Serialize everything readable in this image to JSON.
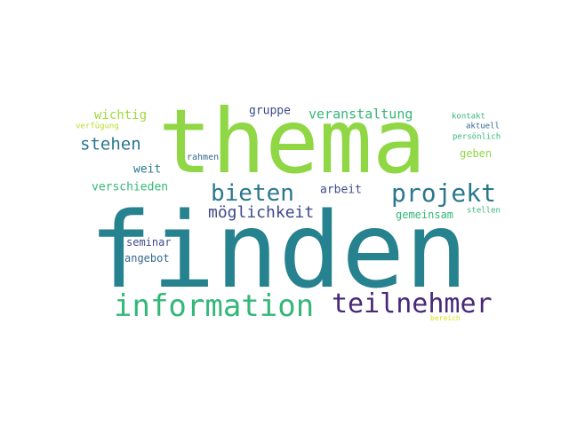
{
  "palette": {
    "yellow_green": "#b5de2b",
    "light_green": "#6ece58",
    "green": "#35b779",
    "teal": "#26828e",
    "teal_blue": "#2a788e",
    "blue": "#3e4a89",
    "navy": "#31688e",
    "purple": "#440154",
    "dark_purple": "#482878"
  },
  "words": [
    {
      "text": "finden",
      "color": "#26828e"
    },
    {
      "text": "thema",
      "color": "#8fd744"
    },
    {
      "text": "information",
      "color": "#35b779"
    },
    {
      "text": "teilnehmer",
      "color": "#482878"
    },
    {
      "text": "projekt",
      "color": "#2a788e"
    },
    {
      "text": "bieten",
      "color": "#2a788e"
    },
    {
      "text": "möglichkeit",
      "color": "#3e4a89"
    },
    {
      "text": "stehen",
      "color": "#2a788e"
    },
    {
      "text": "veranstaltung",
      "color": "#35b779"
    },
    {
      "text": "wichtig",
      "color": "#a0da39"
    },
    {
      "text": "gruppe",
      "color": "#3e4a89"
    },
    {
      "text": "weit",
      "color": "#2a788e"
    },
    {
      "text": "verschieden",
      "color": "#35b779"
    },
    {
      "text": "arbeit",
      "color": "#3e4a89"
    },
    {
      "text": "gemeinsam",
      "color": "#35b779"
    },
    {
      "text": "geben",
      "color": "#8fd744"
    },
    {
      "text": "seminar",
      "color": "#3e4a89"
    },
    {
      "text": "angebot",
      "color": "#31688e"
    },
    {
      "text": "rahmen",
      "color": "#31688e"
    },
    {
      "text": "kontakt",
      "color": "#35b779"
    },
    {
      "text": "aktuell",
      "color": "#31688e"
    },
    {
      "text": "persönlich",
      "color": "#35b779"
    },
    {
      "text": "verfügung",
      "color": "#b5de2b"
    },
    {
      "text": "stellen",
      "color": "#35b779"
    },
    {
      "text": "bereich",
      "color": "#dfe318"
    }
  ]
}
